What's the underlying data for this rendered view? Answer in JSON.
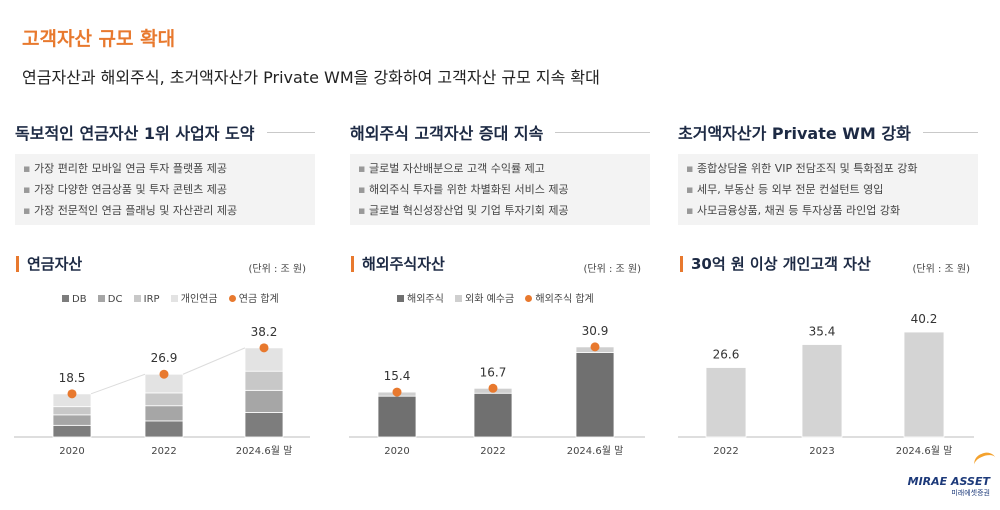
{
  "page": {
    "title": "고객자산 규모 확대",
    "subtitle": "연금자산과 해외주식, 초거액자산가 Private WM을 강화하여 고객자산 규모 지속 확대"
  },
  "columns": [
    {
      "heading": "독보적인 연금자산 1위 사업자 도약",
      "bullets": [
        "가장 편리한 모바일 연금 투자 플랫폼 제공",
        "가장 다양한 연금상품 및 투자 콘텐츠 제공",
        "가장 전문적인 연금 플래닝 및 자산관리 제공"
      ]
    },
    {
      "heading": "해외주식 고객자산 증대 지속",
      "bullets": [
        "글로벌 자산배분으로 고객 수익률 제고",
        "해외주식 투자를 위한 차별화된 서비스 제공",
        "글로벌 혁신성장산업 및 기업 투자기회 제공"
      ]
    },
    {
      "heading": "초거액자산가 Private WM 강화",
      "bullets": [
        "종합상담을 위한 VIP 전담조직 및 특화점포 강화",
        "세무, 부동산 등 외부 전문 컨설턴트 영입",
        "사모금융상품, 채권 등 투자상품 라인업 강화"
      ]
    }
  ],
  "logo": {
    "name": "MIRAE ASSET",
    "sub": "미래에셋증권"
  },
  "chart_data": [
    {
      "type": "bar",
      "title": "연금자산",
      "unit": "(단위 : 조 원)",
      "categories": [
        "2020",
        "2022",
        "2024.6월 말"
      ],
      "legend": [
        "DB",
        "DC",
        "IRP",
        "개인연금",
        "연금 합계"
      ],
      "series": [
        {
          "name": "DB",
          "values": [
            5.0,
            6.9,
            10.5
          ]
        },
        {
          "name": "DC",
          "values": [
            4.5,
            6.5,
            9.5
          ]
        },
        {
          "name": "IRP",
          "values": [
            3.5,
            5.5,
            8.2
          ]
        },
        {
          "name": "개인연금",
          "values": [
            5.5,
            8.0,
            10.0
          ]
        }
      ],
      "totals": [
        18.5,
        26.9,
        38.2
      ],
      "total_labels": [
        "18.5",
        "26.9",
        "38.2"
      ],
      "colors": [
        "#7d7d7d",
        "#a6a6a6",
        "#c8c8c8",
        "#e3e3e3"
      ],
      "total_color": "#e8792e",
      "ylim": [
        0,
        45
      ]
    },
    {
      "type": "bar",
      "title": "해외주식자산",
      "unit": "(단위 : 조 원)",
      "categories": [
        "2020",
        "2022",
        "2024.6월 말"
      ],
      "legend": [
        "해외주식",
        "외화 예수금",
        "해외주식 합계"
      ],
      "series": [
        {
          "name": "해외주식",
          "values": [
            14.0,
            15.0,
            29.0
          ]
        },
        {
          "name": "외화 예수금",
          "values": [
            1.4,
            1.7,
            1.9
          ]
        }
      ],
      "totals": [
        15.4,
        16.7,
        30.9
      ],
      "total_labels": [
        "15.4",
        "16.7",
        "30.9"
      ],
      "colors": [
        "#707070",
        "#cfcfcf"
      ],
      "total_color": "#e8792e",
      "ylim": [
        0,
        36
      ]
    },
    {
      "type": "bar",
      "title": "30억 원 이상 개인고객 자산",
      "unit": "(단위 : 조 원)",
      "categories": [
        "2022",
        "2023",
        "2024.6월 말"
      ],
      "series": [
        {
          "values": [
            26.6,
            35.4,
            40.2
          ]
        }
      ],
      "value_labels": [
        "26.6",
        "35.4",
        "40.2"
      ],
      "colors": [
        "#d4d4d4"
      ],
      "ylim": [
        0,
        40.2
      ]
    }
  ]
}
